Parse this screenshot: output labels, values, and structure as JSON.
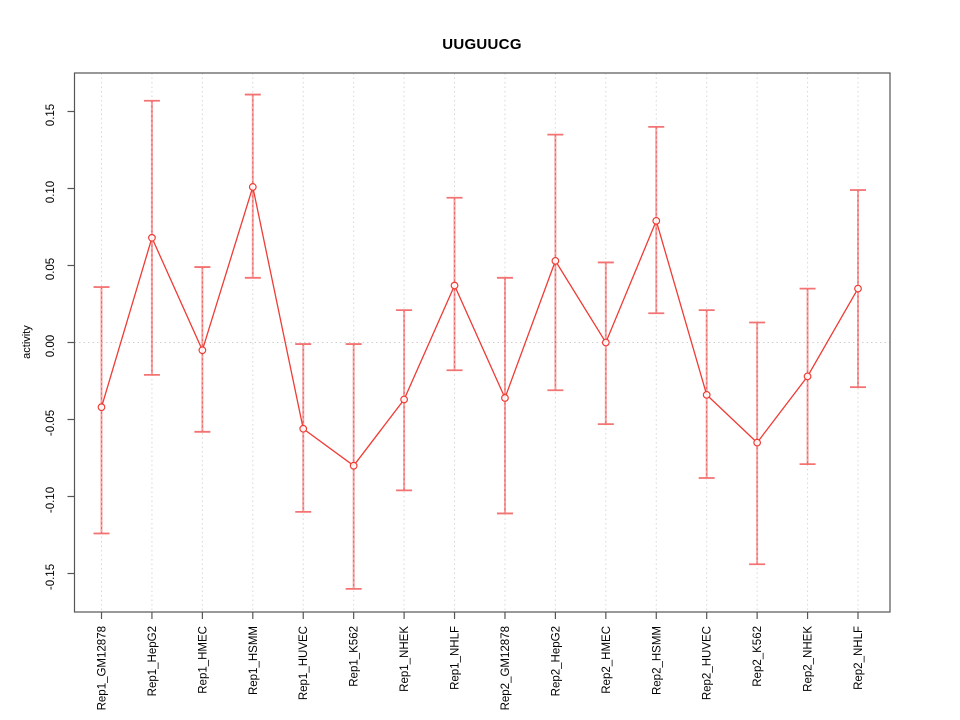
{
  "chart_data": {
    "type": "line",
    "title": "UUGUUCG",
    "xlabel": "",
    "ylabel": "activity",
    "ylim": [
      -0.175,
      0.175
    ],
    "ytick_labels": [
      "-0.15",
      "-0.10",
      "-0.05",
      "0.00",
      "0.05",
      "0.10",
      "0.15"
    ],
    "ytick_values": [
      -0.15,
      -0.1,
      -0.05,
      0.0,
      0.05,
      0.1,
      0.15
    ],
    "grid": "dotted vertical gridline at each category; dotted horizontal line at y=0 only",
    "legend": "none",
    "categories": [
      "Rep1_GM12878",
      "Rep1_HepG2",
      "Rep1_HMEC",
      "Rep1_HSMM",
      "Rep1_HUVEC",
      "Rep1_K562",
      "Rep1_NHEK",
      "Rep1_NHLF",
      "Rep2_GM12878",
      "Rep2_HepG2",
      "Rep2_HMEC",
      "Rep2_HSMM",
      "Rep2_HUVEC",
      "Rep2_K562",
      "Rep2_NHEK",
      "Rep2_NHLF"
    ],
    "series": [
      {
        "name": "activity",
        "marker": "open-circle",
        "values": [
          -0.042,
          0.068,
          -0.005,
          0.101,
          -0.056,
          -0.08,
          -0.037,
          0.037,
          -0.036,
          0.053,
          0.0,
          0.079,
          -0.034,
          -0.065,
          -0.022,
          0.035
        ],
        "error_low": [
          -0.124,
          -0.021,
          -0.058,
          0.042,
          -0.11,
          -0.16,
          -0.096,
          -0.018,
          -0.111,
          -0.031,
          -0.053,
          0.019,
          -0.088,
          -0.144,
          -0.079,
          -0.029
        ],
        "error_high": [
          0.036,
          0.157,
          0.049,
          0.161,
          -0.001,
          -0.001,
          0.021,
          0.094,
          0.042,
          0.135,
          0.052,
          0.14,
          0.021,
          0.013,
          0.035,
          0.099
        ]
      }
    ],
    "colors": {
      "line": "#ee3c35",
      "marker": "#ee3c35",
      "error_bar": "#f6a0a0",
      "error_bar_dash": "#e96060",
      "error_bar_cap": "#f37373",
      "grid": "#d8d8d8",
      "zero_line": "#cfcfcf",
      "frame": "#555555",
      "text": "#000000",
      "background": "#ffffff"
    }
  }
}
